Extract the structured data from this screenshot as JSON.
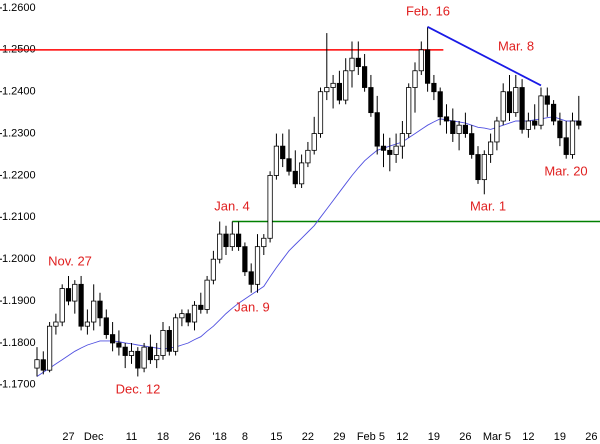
{
  "chart_data": {
    "type": "candlestick",
    "categories": [
      null,
      null,
      null,
      null,
      null,
      "27",
      null,
      null,
      null,
      "Dec",
      null,
      null,
      null,
      null,
      null,
      "11",
      null,
      null,
      null,
      null,
      "18",
      null,
      null,
      null,
      null,
      "26",
      null,
      null,
      null,
      "'18",
      null,
      null,
      null,
      "8",
      null,
      null,
      null,
      null,
      "15",
      null,
      null,
      null,
      null,
      "22",
      null,
      null,
      null,
      null,
      "29",
      null,
      null,
      null,
      null,
      "Feb 5",
      null,
      null,
      null,
      null,
      "12",
      null,
      null,
      null,
      null,
      "19",
      null,
      null,
      null,
      null,
      "26",
      null,
      null,
      null,
      null,
      "Mar 5",
      null,
      null,
      null,
      null,
      "12",
      null,
      null,
      null,
      null,
      "19",
      null,
      null,
      null,
      null,
      "26"
    ],
    "open": [
      1.174,
      1.176,
      1.1735,
      1.184,
      1.185,
      1.193,
      1.19,
      1.194,
      1.184,
      1.185,
      1.19,
      1.186,
      1.182,
      1.18,
      1.179,
      1.177,
      1.178,
      1.174,
      1.179,
      1.176,
      1.177,
      1.183,
      1.178,
      1.186,
      1.187,
      1.185,
      1.189,
      1.188,
      1.195,
      1.2,
      1.206,
      1.203,
      1.206,
      1.203,
      1.197,
      1.194,
      1.203,
      1.205,
      1.22,
      1.227,
      1.224,
      1.221,
      1.218,
      1.223,
      1.226,
      1.23,
      1.24,
      1.241,
      1.242,
      1.238,
      1.245,
      1.248,
      1.246,
      1.241,
      1.235,
      1.227,
      1.226,
      1.225,
      1.227,
      1.23,
      1.241,
      1.245,
      1.25,
      1.242,
      1.24,
      1.234,
      1.233,
      1.23,
      1.232,
      1.23,
      1.225,
      1.219,
      1.225,
      1.228,
      1.233,
      1.24,
      1.235,
      1.241,
      1.231,
      1.233,
      1.232,
      1.239,
      1.237,
      1.233,
      1.229,
      1.225,
      1.233,
      null,
      null
    ],
    "high": [
      1.179,
      1.178,
      1.185,
      1.187,
      1.194,
      1.196,
      1.195,
      1.196,
      1.188,
      1.194,
      1.192,
      1.188,
      1.185,
      1.183,
      1.18,
      1.18,
      1.179,
      1.18,
      1.182,
      1.18,
      1.185,
      1.184,
      1.187,
      1.188,
      1.188,
      1.19,
      1.192,
      1.196,
      1.202,
      1.209,
      1.208,
      1.209,
      1.209,
      1.204,
      1.199,
      1.206,
      1.206,
      1.221,
      1.23,
      1.23,
      1.231,
      1.226,
      1.225,
      1.228,
      1.234,
      1.241,
      1.254,
      1.244,
      1.245,
      1.248,
      1.252,
      1.252,
      1.249,
      1.244,
      1.239,
      1.23,
      1.229,
      1.23,
      1.233,
      1.242,
      1.247,
      1.252,
      1.2555,
      1.244,
      1.241,
      1.237,
      1.236,
      1.233,
      1.235,
      1.232,
      1.227,
      1.226,
      1.23,
      1.234,
      1.242,
      1.244,
      1.244,
      1.243,
      1.235,
      1.237,
      1.241,
      1.241,
      1.238,
      1.235,
      1.233,
      1.235,
      1.239,
      null,
      null
    ],
    "low": [
      1.172,
      1.1725,
      1.173,
      1.182,
      1.184,
      1.189,
      1.187,
      1.183,
      1.182,
      1.183,
      1.184,
      1.181,
      1.178,
      1.177,
      1.174,
      1.175,
      1.172,
      1.173,
      1.175,
      1.174,
      1.176,
      1.177,
      1.177,
      1.184,
      1.184,
      1.183,
      1.187,
      1.187,
      1.194,
      1.199,
      1.201,
      1.202,
      1.202,
      1.196,
      1.192,
      1.192,
      1.201,
      1.204,
      1.219,
      1.222,
      1.22,
      1.217,
      1.217,
      1.222,
      1.225,
      1.229,
      1.238,
      1.236,
      1.237,
      1.237,
      1.241,
      1.244,
      1.24,
      1.234,
      1.225,
      1.222,
      1.221,
      1.223,
      1.224,
      1.229,
      1.235,
      1.244,
      1.24,
      1.238,
      1.232,
      1.23,
      1.228,
      1.226,
      1.229,
      1.224,
      1.218,
      1.2155,
      1.223,
      1.226,
      1.232,
      1.233,
      1.234,
      1.23,
      1.229,
      1.231,
      1.231,
      1.234,
      1.232,
      1.227,
      1.224,
      1.224,
      1.231,
      null,
      null
    ],
    "close": [
      1.176,
      1.1735,
      1.184,
      1.185,
      1.193,
      1.19,
      1.194,
      1.184,
      1.185,
      1.19,
      1.186,
      1.182,
      1.18,
      1.179,
      1.177,
      1.178,
      1.174,
      1.179,
      1.176,
      1.177,
      1.183,
      1.178,
      1.186,
      1.187,
      1.185,
      1.189,
      1.188,
      1.195,
      1.2,
      1.206,
      1.203,
      1.206,
      1.203,
      1.197,
      1.194,
      1.203,
      1.205,
      1.22,
      1.227,
      1.224,
      1.221,
      1.218,
      1.223,
      1.226,
      1.23,
      1.24,
      1.241,
      1.242,
      1.238,
      1.245,
      1.248,
      1.246,
      1.241,
      1.235,
      1.227,
      1.226,
      1.225,
      1.227,
      1.23,
      1.241,
      1.245,
      1.25,
      1.242,
      1.24,
      1.234,
      1.233,
      1.23,
      1.232,
      1.23,
      1.225,
      1.219,
      1.225,
      1.228,
      1.233,
      1.24,
      1.235,
      1.241,
      1.231,
      1.233,
      1.232,
      1.239,
      1.237,
      1.233,
      1.229,
      1.225,
      1.233,
      1.232,
      null,
      null
    ],
    "up_color": "#ffffff",
    "down_color": "#000000",
    "moving_average": {
      "color": "#5050e0",
      "values": [
        1.172,
        1.173,
        1.174,
        1.175,
        1.176,
        1.177,
        1.178,
        1.1788,
        1.1795,
        1.18,
        1.1805,
        1.1805,
        1.1805,
        1.1803,
        1.18,
        1.1798,
        1.1795,
        1.1793,
        1.179,
        1.1788,
        1.1785,
        1.1788,
        1.179,
        1.1795,
        1.18,
        1.1808,
        1.1815,
        1.1828,
        1.184,
        1.1855,
        1.187,
        1.1883,
        1.1895,
        1.1905,
        1.1915,
        1.1925,
        1.1935,
        1.1958,
        1.198,
        1.2,
        1.202,
        1.2035,
        1.205,
        1.2065,
        1.208,
        1.21,
        1.212,
        1.214,
        1.216,
        1.218,
        1.22,
        1.2218,
        1.2235,
        1.2248,
        1.226,
        1.2265,
        1.227,
        1.2275,
        1.228,
        1.229,
        1.23,
        1.231,
        1.232,
        1.2328,
        1.2335,
        1.2333,
        1.233,
        1.2328,
        1.2325,
        1.232,
        1.2315,
        1.2313,
        1.231,
        1.2315,
        1.232,
        1.2325,
        1.233,
        1.233,
        1.233,
        1.2333,
        1.2335,
        1.2338,
        1.234,
        1.2335,
        1.233,
        1.233,
        1.233,
        null,
        null
      ]
    },
    "hlines": [
      {
        "value": 1.25,
        "color": "#ff0000"
      },
      {
        "value": 1.209,
        "color": "#008000"
      }
    ],
    "trendline": {
      "color": "#1a1ae6",
      "start": 1.2555,
      "end": 1.2415
    },
    "annotations": [
      "Nov. 27",
      "Dec. 12",
      "Jan. 4",
      "Jan. 9",
      "Feb. 16",
      "Mar. 8",
      "Mar. 1",
      "Mar. 20"
    ],
    "annotation_color": "#e02020",
    "ylim": [
      1.1659,
      1.2619
    ],
    "yticks": [
      {
        "value": 1.17,
        "label": "1.1700"
      },
      {
        "value": 1.18,
        "label": "1.1800"
      },
      {
        "value": 1.19,
        "label": "1.1900"
      },
      {
        "value": 1.2,
        "label": "1.2000"
      },
      {
        "value": 1.21,
        "label": "1.2100"
      },
      {
        "value": 1.22,
        "label": "1.2200"
      },
      {
        "value": 1.23,
        "label": "1.2300"
      },
      {
        "value": 1.24,
        "label": "1.2400"
      },
      {
        "value": 1.25,
        "label": "1.2500"
      },
      {
        "value": 1.26,
        "label": "1.2600"
      }
    ],
    "grid": false
  }
}
